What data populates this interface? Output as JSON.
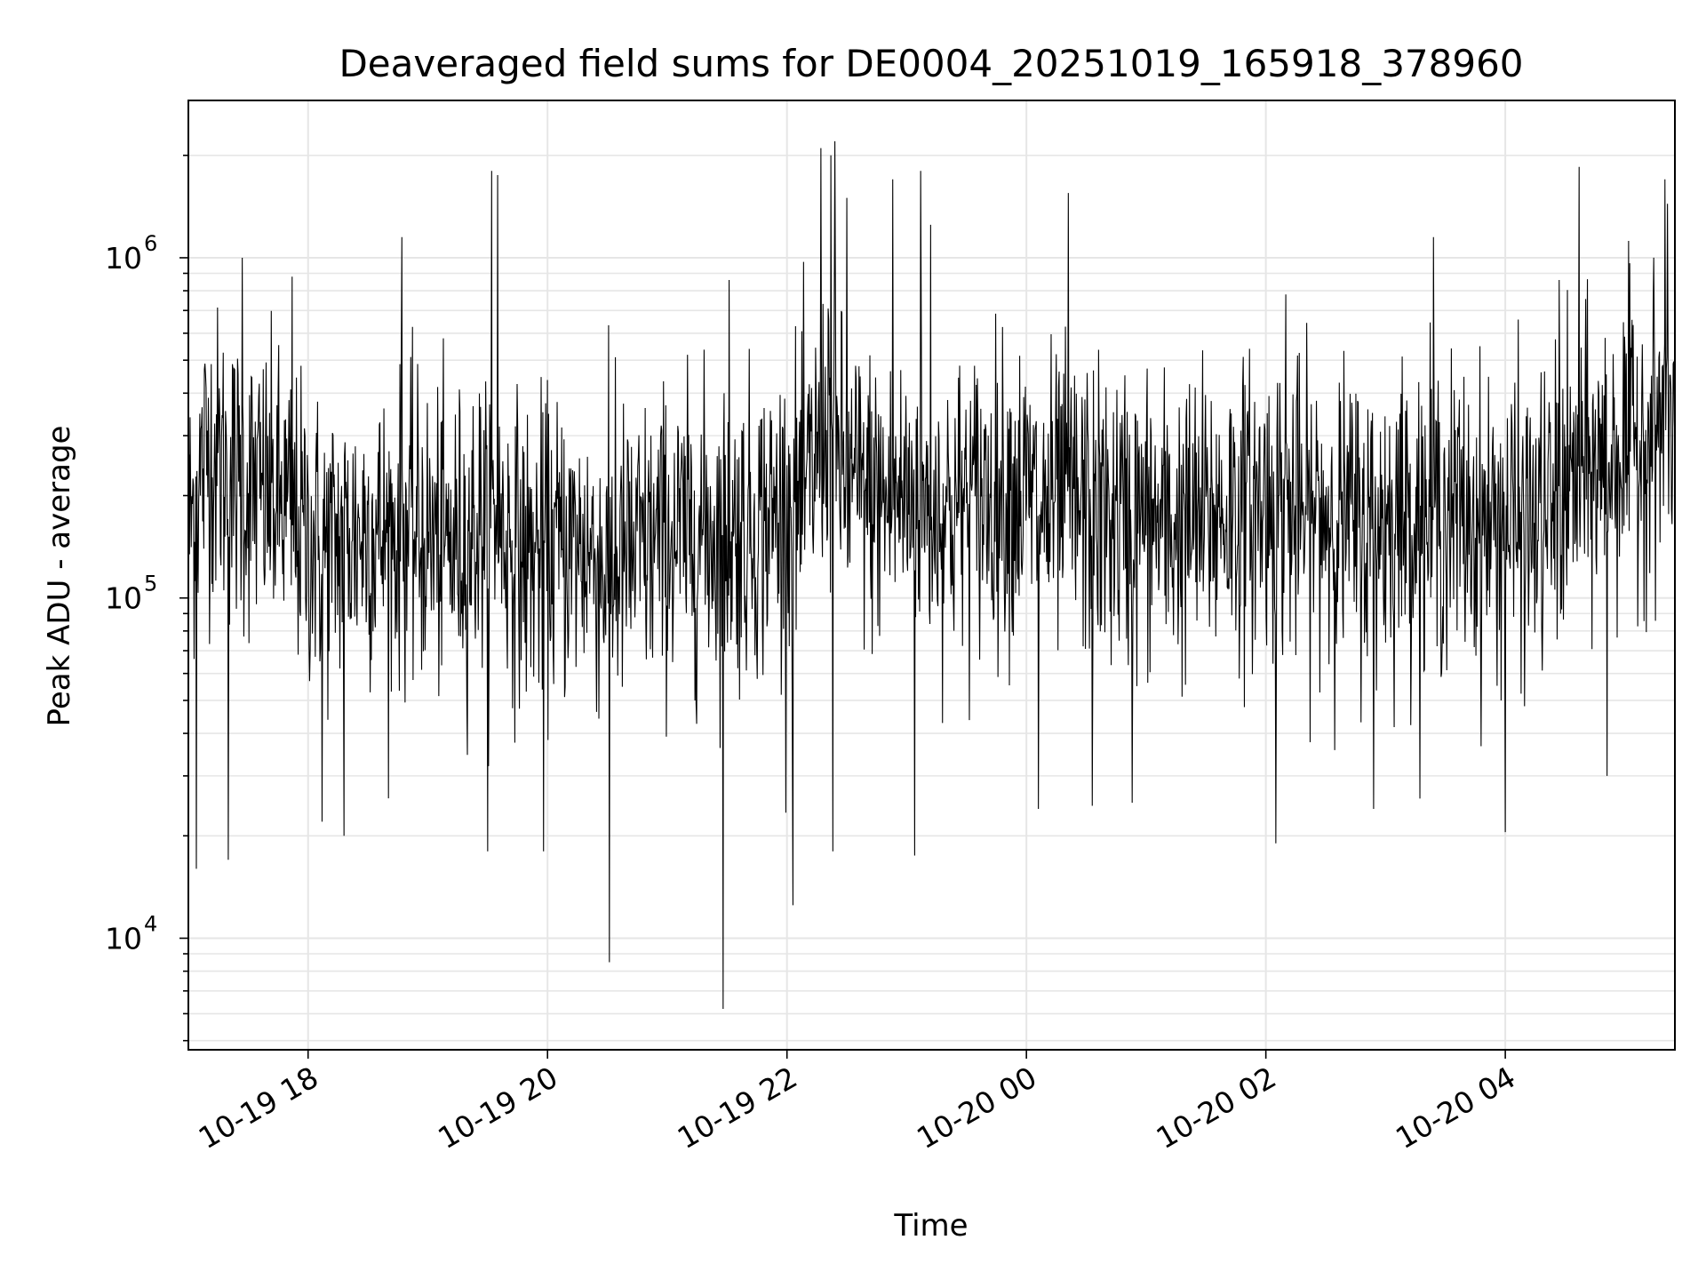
{
  "chart_data": {
    "type": "line",
    "title": "Deaveraged field sums for DE0004_20251019_165918_378960",
    "xlabel": "Time",
    "ylabel": "Peak ADU - average",
    "yscale": "log",
    "grid": true,
    "line_color": "#000000",
    "grid_color": "#e6e6e6",
    "xlim": [
      "2025-10-19 17:00",
      "2025-10-20 05:25"
    ],
    "ylim": [
      4700,
      2900000
    ],
    "x_ticks": [
      {
        "t": "2025-10-19 18:00",
        "label": "10-19 18"
      },
      {
        "t": "2025-10-19 20:00",
        "label": "10-19 20"
      },
      {
        "t": "2025-10-19 22:00",
        "label": "10-19 22"
      },
      {
        "t": "2025-10-20 00:00",
        "label": "10-20 00"
      },
      {
        "t": "2025-10-20 02:00",
        "label": "10-20 02"
      },
      {
        "t": "2025-10-20 04:00",
        "label": "10-20 04"
      }
    ],
    "y_ticks": [
      {
        "value": 10000,
        "base": "10",
        "exp": "4"
      },
      {
        "value": 100000,
        "base": "10",
        "exp": "5"
      },
      {
        "value": 1000000,
        "base": "10",
        "exp": "6"
      }
    ],
    "series": [
      {
        "values_points": [
          [
            "2025-10-19 17:00",
            160000
          ],
          [
            "2025-10-19 17:10",
            280000
          ],
          [
            "2025-10-19 17:20",
            230000
          ],
          [
            "2025-10-19 17:30",
            210000
          ],
          [
            "2025-10-19 17:40",
            200000
          ],
          [
            "2025-10-19 17:50",
            180000
          ],
          [
            "2025-10-19 18:00",
            150000
          ],
          [
            "2025-10-19 18:10",
            140000
          ],
          [
            "2025-10-19 18:20",
            150000
          ],
          [
            "2025-10-19 18:30",
            160000
          ],
          [
            "2025-10-19 18:40",
            150000
          ],
          [
            "2025-10-19 18:50",
            160000
          ],
          [
            "2025-10-19 19:00",
            150000
          ],
          [
            "2025-10-19 19:10",
            140000
          ],
          [
            "2025-10-19 19:20",
            150000
          ],
          [
            "2025-10-19 19:30",
            180000
          ],
          [
            "2025-10-19 19:40",
            150000
          ],
          [
            "2025-10-19 19:50",
            130000
          ],
          [
            "2025-10-19 20:00",
            140000
          ],
          [
            "2025-10-19 20:10",
            140000
          ],
          [
            "2025-10-19 20:20",
            140000
          ],
          [
            "2025-10-19 20:30",
            120000
          ],
          [
            "2025-10-19 20:40",
            130000
          ],
          [
            "2025-10-19 20:50",
            140000
          ],
          [
            "2025-10-19 21:00",
            150000
          ],
          [
            "2025-10-19 21:10",
            150000
          ],
          [
            "2025-10-19 21:20",
            160000
          ],
          [
            "2025-10-19 21:30",
            150000
          ],
          [
            "2025-10-19 21:40",
            160000
          ],
          [
            "2025-10-19 21:50",
            170000
          ],
          [
            "2025-10-19 22:00",
            180000
          ],
          [
            "2025-10-19 22:10",
            200000
          ],
          [
            "2025-10-19 22:20",
            350000
          ],
          [
            "2025-10-19 22:30",
            220000
          ],
          [
            "2025-10-19 22:40",
            200000
          ],
          [
            "2025-10-19 22:50",
            190000
          ],
          [
            "2025-10-19 23:00",
            200000
          ],
          [
            "2025-10-19 23:10",
            190000
          ],
          [
            "2025-10-19 23:20",
            180000
          ],
          [
            "2025-10-19 23:30",
            190000
          ],
          [
            "2025-10-19 23:40",
            200000
          ],
          [
            "2025-10-19 23:50",
            210000
          ],
          [
            "2025-10-20 00:00",
            200000
          ],
          [
            "2025-10-20 00:10",
            180000
          ],
          [
            "2025-10-20 00:20",
            190000
          ],
          [
            "2025-10-20 00:30",
            180000
          ],
          [
            "2025-10-20 00:40",
            170000
          ],
          [
            "2025-10-20 00:50",
            170000
          ],
          [
            "2025-10-20 01:00",
            170000
          ],
          [
            "2025-10-20 01:10",
            160000
          ],
          [
            "2025-10-20 01:20",
            160000
          ],
          [
            "2025-10-20 01:30",
            170000
          ],
          [
            "2025-10-20 01:40",
            180000
          ],
          [
            "2025-10-20 01:50",
            180000
          ],
          [
            "2025-10-20 02:00",
            190000
          ],
          [
            "2025-10-20 02:10",
            180000
          ],
          [
            "2025-10-20 02:20",
            170000
          ],
          [
            "2025-10-20 02:30",
            180000
          ],
          [
            "2025-10-20 02:40",
            170000
          ],
          [
            "2025-10-20 02:50",
            160000
          ],
          [
            "2025-10-20 03:00",
            170000
          ],
          [
            "2025-10-20 03:10",
            180000
          ],
          [
            "2025-10-20 03:20",
            170000
          ],
          [
            "2025-10-20 03:30",
            180000
          ],
          [
            "2025-10-20 03:40",
            170000
          ],
          [
            "2025-10-20 03:50",
            160000
          ],
          [
            "2025-10-20 04:00",
            170000
          ],
          [
            "2025-10-20 04:10",
            160000
          ],
          [
            "2025-10-20 04:20",
            170000
          ],
          [
            "2025-10-20 04:30",
            200000
          ],
          [
            "2025-10-20 04:40",
            230000
          ],
          [
            "2025-10-20 04:50",
            250000
          ],
          [
            "2025-10-20 05:00",
            280000
          ],
          [
            "2025-10-20 05:10",
            300000
          ],
          [
            "2025-10-20 05:20",
            330000
          ]
        ],
        "peaks": [
          [
            "2025-10-19 17:04",
            16000
          ],
          [
            "2025-10-19 17:20",
            17000
          ],
          [
            "2025-10-19 17:27",
            1000000
          ],
          [
            "2025-10-19 17:52",
            880000
          ],
          [
            "2025-10-19 18:07",
            22000
          ],
          [
            "2025-10-19 18:18",
            20000
          ],
          [
            "2025-10-19 18:47",
            1150000
          ],
          [
            "2025-10-19 19:30",
            18000
          ],
          [
            "2025-10-19 19:32",
            1800000
          ],
          [
            "2025-10-19 19:35",
            1750000
          ],
          [
            "2025-10-19 19:58",
            18000
          ],
          [
            "2025-10-19 20:31",
            8500
          ],
          [
            "2025-10-19 20:34",
            510000
          ],
          [
            "2025-10-19 21:28",
            6200
          ],
          [
            "2025-10-19 21:31",
            860000
          ],
          [
            "2025-10-19 22:03",
            12500
          ],
          [
            "2025-10-19 22:17",
            2100000
          ],
          [
            "2025-10-19 22:22",
            2000000
          ],
          [
            "2025-10-19 22:24",
            2200000
          ],
          [
            "2025-10-19 22:23",
            18000
          ],
          [
            "2025-10-19 22:30",
            1500000
          ],
          [
            "2025-10-19 22:53",
            1700000
          ],
          [
            "2025-10-19 23:04",
            17500
          ],
          [
            "2025-10-19 23:07",
            1800000
          ],
          [
            "2025-10-19 23:12",
            1250000
          ],
          [
            "2025-10-20 00:06",
            24000
          ],
          [
            "2025-10-20 00:21",
            1550000
          ],
          [
            "2025-10-20 00:33",
            24500
          ],
          [
            "2025-10-20 00:53",
            25000
          ],
          [
            "2025-10-20 02:05",
            19000
          ],
          [
            "2025-10-20 02:10",
            780000
          ],
          [
            "2025-10-20 02:54",
            24000
          ],
          [
            "2025-10-20 03:24",
            1150000
          ],
          [
            "2025-10-20 04:00",
            20500
          ],
          [
            "2025-10-20 04:27",
            860000
          ],
          [
            "2025-10-20 04:37",
            1850000
          ],
          [
            "2025-10-20 04:51",
            30000
          ],
          [
            "2025-10-20 05:20",
            1700000
          ]
        ]
      }
    ]
  }
}
